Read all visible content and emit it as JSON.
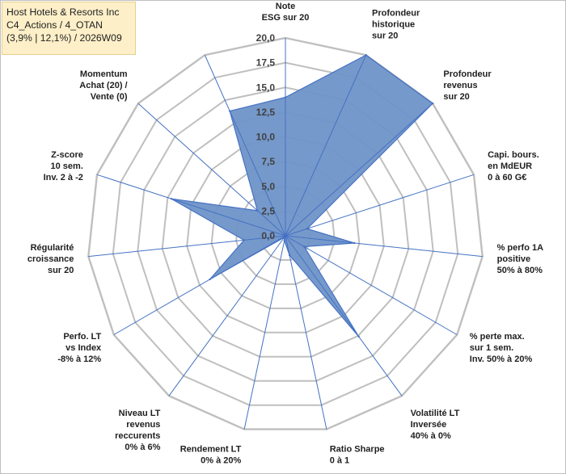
{
  "header": {
    "lines": [
      "Host Hotels & Resorts Inc",
      "C4_Actions / 4_OTAN",
      "(3,9% | 12,1%) / 2026W09"
    ]
  },
  "colors": {
    "fill": "#6f93c8",
    "stroke": "#4472c4",
    "grid": "#bfbfbf",
    "spoke": "#4472c4",
    "header_bg": "#fdefc8"
  },
  "chart_data": {
    "type": "radar",
    "rmin": 0,
    "rmax": 20,
    "tick_labels": [
      "0,0",
      "2,5",
      "5,0",
      "7,5",
      "10,0",
      "12,5",
      "15,0",
      "17,5",
      "20,0"
    ],
    "grid": true,
    "axes": [
      {
        "label": [
          "Note",
          "ESG sur 20"
        ],
        "value": 14.0
      },
      {
        "label": [
          "Profondeur",
          "historique",
          "sur 20"
        ],
        "value": 20.0
      },
      {
        "label": [
          "Profondeur",
          "revenus",
          "sur 20"
        ],
        "value": 20.0
      },
      {
        "label": [
          "Capi. bours.",
          "en MdEUR",
          "0 à 60 G€"
        ],
        "value": 2.3
      },
      {
        "label": [
          "% perfo 1A",
          "positive",
          "50% à 80%"
        ],
        "value": 7.0
      },
      {
        "label": [
          "% perte max.",
          "sur 1 sem.",
          "Inv. 50% à 20%"
        ],
        "value": 2.2
      },
      {
        "label": [
          "Volatilité LT",
          "Inversée",
          "40% à 0%"
        ],
        "value": 12.6
      },
      {
        "label": [
          "Ratio Sharpe",
          "0 à 1"
        ],
        "value": 2.0
      },
      {
        "label": [
          "Rendement LT",
          "0% à 20%"
        ],
        "value": 0.5
      },
      {
        "label": [
          "Niveau LT",
          "revenus",
          "reccurents",
          "0% à 6%"
        ],
        "value": 0.2
      },
      {
        "label": [
          "Perfo. LT",
          "vs Index",
          "-8% à 12%"
        ],
        "value": 8.8
      },
      {
        "label": [
          "Régularité",
          "croissance",
          "sur 20"
        ],
        "value": 4.2
      },
      {
        "label": [
          "Z-score",
          "10 sem.",
          "Inv. 2 à -2"
        ],
        "value": 12.1
      },
      {
        "label": [
          "Momentum",
          "Achat (20) /",
          "Vente (0)"
        ],
        "value": 3.8
      },
      {
        "label": [
          "",
          "",
          ""
        ],
        "value": 13.8
      }
    ]
  }
}
